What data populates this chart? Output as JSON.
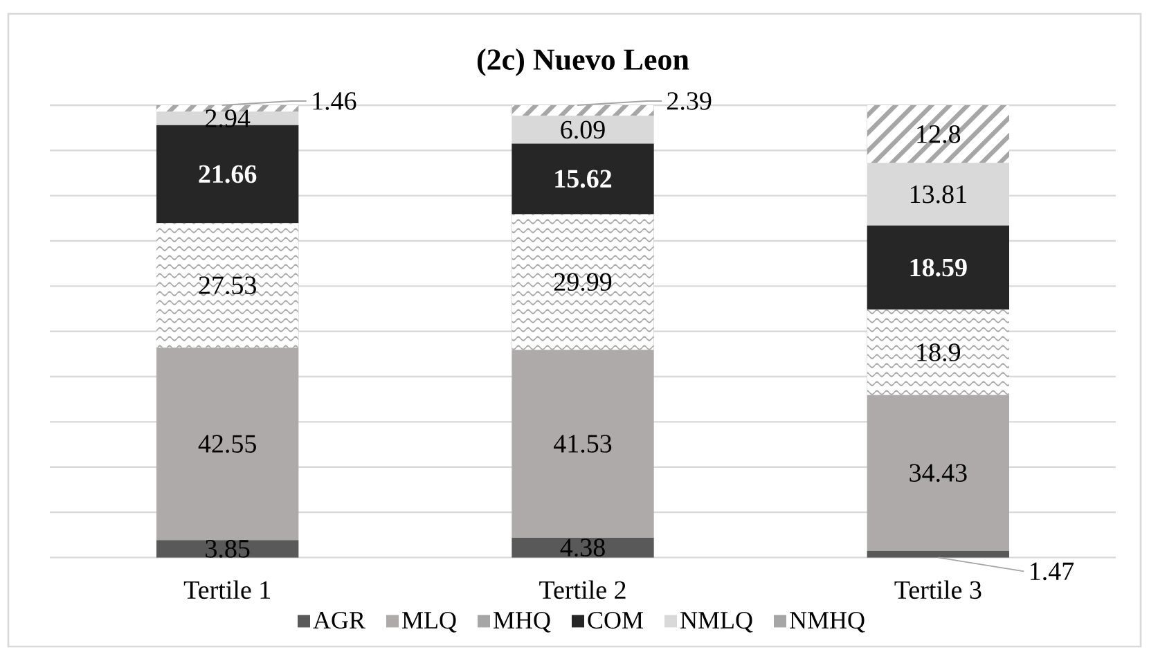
{
  "chart_data": {
    "type": "bar",
    "title": "(2c) Nuevo Leon",
    "categories": [
      "Tertile 1",
      "Tertile 2",
      "Tertile 3"
    ],
    "stacked": true,
    "series": [
      {
        "name": "AGR",
        "color": "#595959",
        "values": [
          3.85,
          4.38,
          1.47
        ]
      },
      {
        "name": "MLQ",
        "color": "#aeaaaa",
        "values": [
          42.55,
          41.53,
          34.43
        ]
      },
      {
        "name": "MHQ",
        "color": "#a6a6a6",
        "values": [
          27.53,
          29.99,
          18.9
        ]
      },
      {
        "name": "COM",
        "color": "#262626",
        "values": [
          21.66,
          15.62,
          18.59
        ]
      },
      {
        "name": "NMLQ",
        "color": "#d9d9d9",
        "values": [
          2.94,
          6.09,
          13.81
        ]
      },
      {
        "name": "NMHQ",
        "color": "#a6a6a6",
        "values": [
          1.46,
          2.39,
          12.8
        ]
      }
    ],
    "ylim": [
      0,
      100
    ],
    "yticks": [
      {
        "value": 0,
        "label": null
      },
      {
        "value": 10,
        "label": null
      },
      {
        "value": 20,
        "label": null
      },
      {
        "value": 30,
        "label": null
      },
      {
        "value": 40,
        "label": null
      },
      {
        "value": 50,
        "label": null
      },
      {
        "value": 60,
        "label": null
      },
      {
        "value": 70,
        "label": null
      },
      {
        "value": 80,
        "label": null
      },
      {
        "value": 90,
        "label": null
      },
      {
        "value": 100,
        "label": null
      }
    ],
    "grid": "y",
    "legend": "bottom",
    "data_labels": true,
    "tick_labels": "x"
  }
}
